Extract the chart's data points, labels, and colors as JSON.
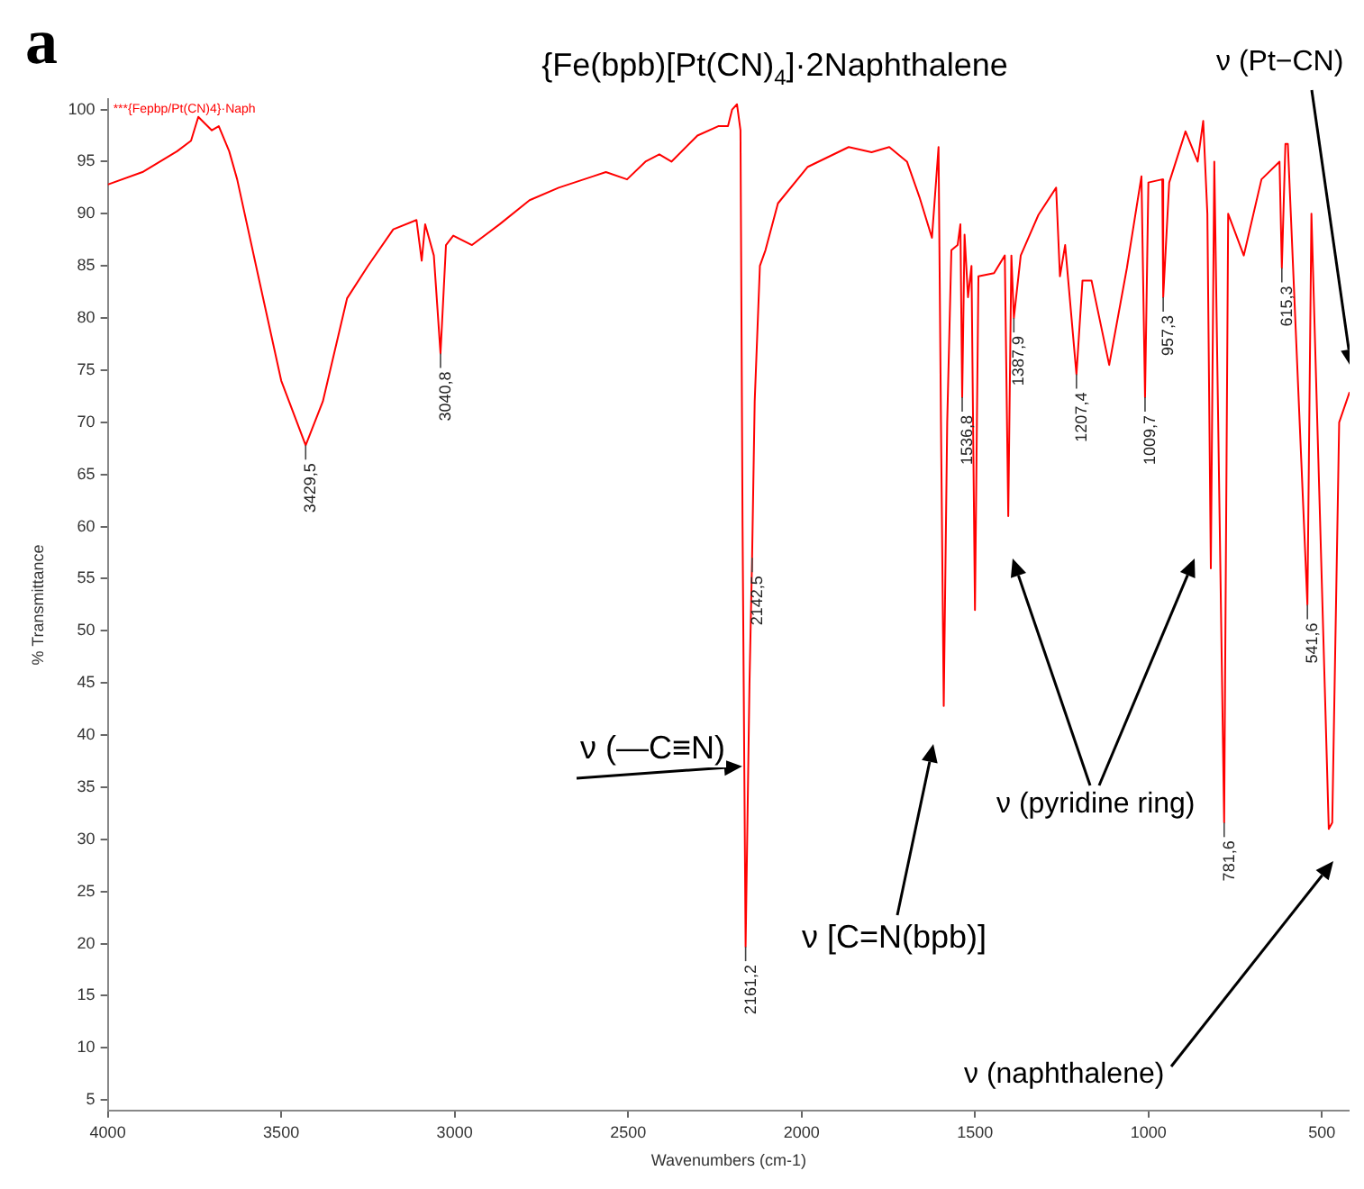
{
  "chart_data": {
    "type": "line",
    "title": "{Fe(bpb)[Pt(CN)$_{4}$]·2Naphthalene",
    "xlabel": "Wavenumbers (cm-1)",
    "ylabel": "% Transmittance",
    "xlim": [
      4000,
      420
    ],
    "xticks": [
      4000,
      3500,
      3000,
      2500,
      2000,
      1500,
      1000,
      500
    ],
    "ylim": [
      4,
      101
    ],
    "yticks": [
      5,
      10,
      15,
      20,
      25,
      30,
      35,
      40,
      45,
      50,
      55,
      60,
      65,
      70,
      75,
      80,
      85,
      90,
      95,
      100
    ],
    "grid": false,
    "legend": "top left",
    "marker": "none",
    "series": [
      {
        "name": "***{Fepbp/Pt(CN)4}·Naph",
        "color": "#ff0000",
        "x": [
          4000,
          3900,
          3800,
          3760,
          3739,
          3700,
          3680,
          3650,
          3627,
          3560,
          3500,
          3429.5,
          3380,
          3310,
          3250,
          3177,
          3110,
          3095,
          3085,
          3060,
          3040.8,
          3025,
          3004,
          2950,
          2870,
          2784,
          2700,
          2600,
          2564,
          2503,
          2450,
          2410,
          2375,
          2300,
          2240,
          2212,
          2200,
          2186,
          2176,
          2170,
          2161.2,
          2150,
          2142.5,
          2135,
          2120,
          2104,
          2068,
          1982,
          1864,
          1798,
          1747,
          1696,
          1660,
          1624,
          1605,
          1598,
          1590,
          1580,
          1568,
          1550,
          1542,
          1536.8,
          1530,
          1520,
          1510,
          1500,
          1490,
          1445,
          1414,
          1404,
          1395,
          1387.9,
          1368,
          1317,
          1266,
          1255,
          1240,
          1207.4,
          1190,
          1164,
          1113,
          1062,
          1020,
          1009.7,
          1000,
          960,
          957.3,
          940,
          893,
          858,
          842,
          830,
          820,
          810,
          781.6,
          770,
          725,
          674,
          622,
          615.3,
          605,
          598,
          541.6,
          530,
          480,
          470,
          450,
          420
        ],
        "values": [
          92.8,
          94,
          96,
          97,
          99.3,
          98,
          98.4,
          96,
          93.3,
          83.1,
          74,
          67.8,
          72,
          81.9,
          85,
          88.5,
          89.4,
          85.5,
          89,
          86,
          76.6,
          87,
          87.9,
          87,
          89,
          91.3,
          92.5,
          93.6,
          94,
          93.3,
          95,
          95.7,
          95,
          97.5,
          98.4,
          98.4,
          100,
          100.5,
          98,
          60,
          19.7,
          45,
          57,
          72,
          85,
          86.5,
          91,
          94.5,
          96.4,
          95.9,
          96.4,
          95,
          91.6,
          87.7,
          96.4,
          70,
          42.8,
          70,
          86.5,
          87,
          89,
          72.4,
          88,
          82,
          85,
          52,
          84,
          84.3,
          86,
          61,
          86,
          80,
          86,
          89.9,
          92.5,
          84,
          87,
          74.6,
          83.6,
          83.6,
          75.5,
          84.8,
          93.6,
          72.4,
          93,
          93.3,
          82,
          93,
          97.9,
          95,
          98.9,
          90,
          56,
          95,
          31.6,
          90,
          86,
          93.3,
          95,
          84.8,
          96.7,
          96.7,
          52.5,
          90,
          31,
          31.6,
          70,
          72.9
        ]
      }
    ],
    "annotations": [
      "a",
      {
        "text": "ν (—C≡N)",
        "x": 2171,
        "y": 37
      },
      "ν [C=N(bpb)]",
      "ν (pyridine ring)",
      "ν (Pt−CN)",
      "ν (naphthalene)",
      {
        "text": "3429,5",
        "x": 3429.5,
        "y": 67.8
      },
      {
        "text": "3040,8",
        "x": 3040.8,
        "y": 76.6
      },
      {
        "text": "2161,2",
        "x": 2161.2,
        "y": 19.7
      },
      {
        "text": "2142,5",
        "x": 2142.5,
        "y": 57
      },
      {
        "text": "1536,8",
        "x": 1536.8,
        "y": 72.4
      },
      {
        "text": "1387,9",
        "x": 1387.9,
        "y": 80
      },
      {
        "text": "1207,4",
        "x": 1207.4,
        "y": 74.6
      },
      {
        "text": "1009,7",
        "x": 1009.7,
        "y": 72.4
      },
      {
        "text": "957,3",
        "x": 957.3,
        "y": 82
      },
      {
        "text": "781,6",
        "x": 781.6,
        "y": 31.6
      },
      {
        "text": "615,3",
        "x": 615.3,
        "y": 84.8
      },
      {
        "text": "541,6",
        "x": 541.6,
        "y": 52.5
      }
    ]
  }
}
